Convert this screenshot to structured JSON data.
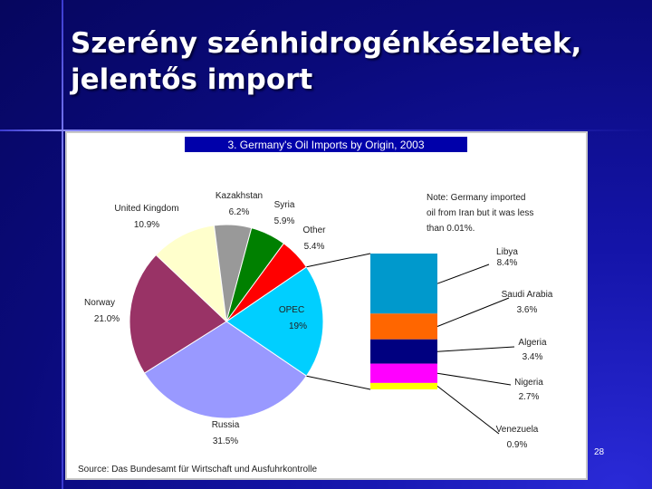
{
  "slide": {
    "title_line1": "Szerény szénhidrogénkészletek,",
    "title_line2": "jelentős import",
    "page_number": "28"
  },
  "chart_data": {
    "type": "pie",
    "title": "3. Germany's Oil Imports by Origin, 2003",
    "source": "Source: Das Bundesamt für Wirtschaft und Ausfuhrkontrolle",
    "note": [
      "Note: Germany imported",
      "oil from Iran but it was less",
      "than 0.01%."
    ],
    "slices": [
      {
        "name": "OPEC",
        "value": 19.0,
        "color": "#00cfff",
        "label_name": "OPEC",
        "label_value": "19%"
      },
      {
        "name": "Russia",
        "value": 31.5,
        "color": "#9999ff",
        "label_name": "Russia",
        "label_value": "31.5%"
      },
      {
        "name": "Norway",
        "value": 21.0,
        "color": "#993366",
        "label_name": "Norway",
        "label_value": "21.0%"
      },
      {
        "name": "United Kingdom",
        "value": 10.9,
        "color": "#ffffcc",
        "label_name": "United Kingdom",
        "label_value": "10.9%"
      },
      {
        "name": "Kazakhstan",
        "value": 6.2,
        "color": "#999999",
        "label_name": "Kazakhstan",
        "label_value": "6.2%"
      },
      {
        "name": "Syria",
        "value": 5.9,
        "color": "#008000",
        "label_name": "Syria",
        "label_value": "5.9%"
      },
      {
        "name": "Other",
        "value": 5.4,
        "color": "#ff0000",
        "label_name": "Other",
        "label_value": "5.4%"
      }
    ],
    "opec_breakdown": [
      {
        "name": "Libya",
        "value": 8.4,
        "color": "#0099cc",
        "label_value": "8.4%"
      },
      {
        "name": "Saudi Arabia",
        "value": 3.6,
        "color": "#ff6600",
        "label_value": "3.6%"
      },
      {
        "name": "Algeria",
        "value": 3.4,
        "color": "#000080",
        "label_value": "3.4%"
      },
      {
        "name": "Nigeria",
        "value": 2.7,
        "color": "#ff00ff",
        "label_value": "2.7%"
      },
      {
        "name": "Venezuela",
        "value": 0.9,
        "color": "#ffff00",
        "label_value": "0.9%"
      }
    ]
  }
}
